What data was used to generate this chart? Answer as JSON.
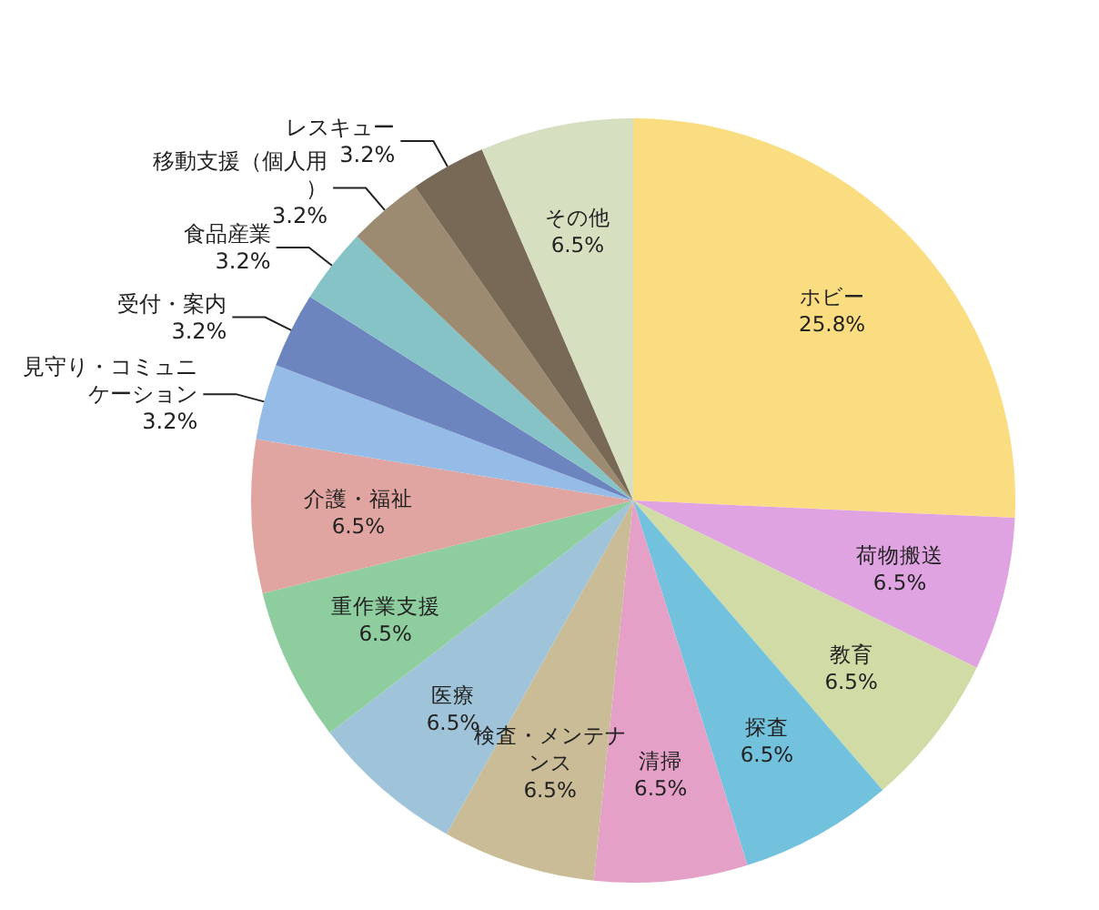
{
  "chart_data": {
    "type": "pie",
    "categories": [
      "ホビー",
      "荷物搬送",
      "教育",
      "探査",
      "清掃",
      "検査・メンテナンス",
      "医療",
      "重作業支援",
      "介護・福祉",
      "見守り・コミュニケーション",
      "受付・案内",
      "食品産業",
      "移動支援（個人用）",
      "レスキュー",
      "その他"
    ],
    "values": [
      25.8,
      6.5,
      6.5,
      6.5,
      6.5,
      6.5,
      6.5,
      6.5,
      6.5,
      3.2,
      3.2,
      3.2,
      3.2,
      3.2,
      6.5
    ],
    "colors": [
      "#f9dd80",
      "#e0a3e2",
      "#d1dba6",
      "#72c2dd",
      "#e4a0c6",
      "#c9bc96",
      "#9fc3d8",
      "#8ecd9e",
      "#e0a5a1",
      "#95bce6",
      "#6d85bf",
      "#86c3c6",
      "#9c8b70",
      "#776955",
      "#d6dfc0"
    ],
    "value_labels": [
      "25.8%",
      "6.5%",
      "6.5%",
      "6.5%",
      "6.5%",
      "6.5%",
      "6.5%",
      "6.5%",
      "6.5%",
      "3.2%",
      "3.2%",
      "3.2%",
      "3.2%",
      "3.2%",
      "6.5%"
    ]
  }
}
